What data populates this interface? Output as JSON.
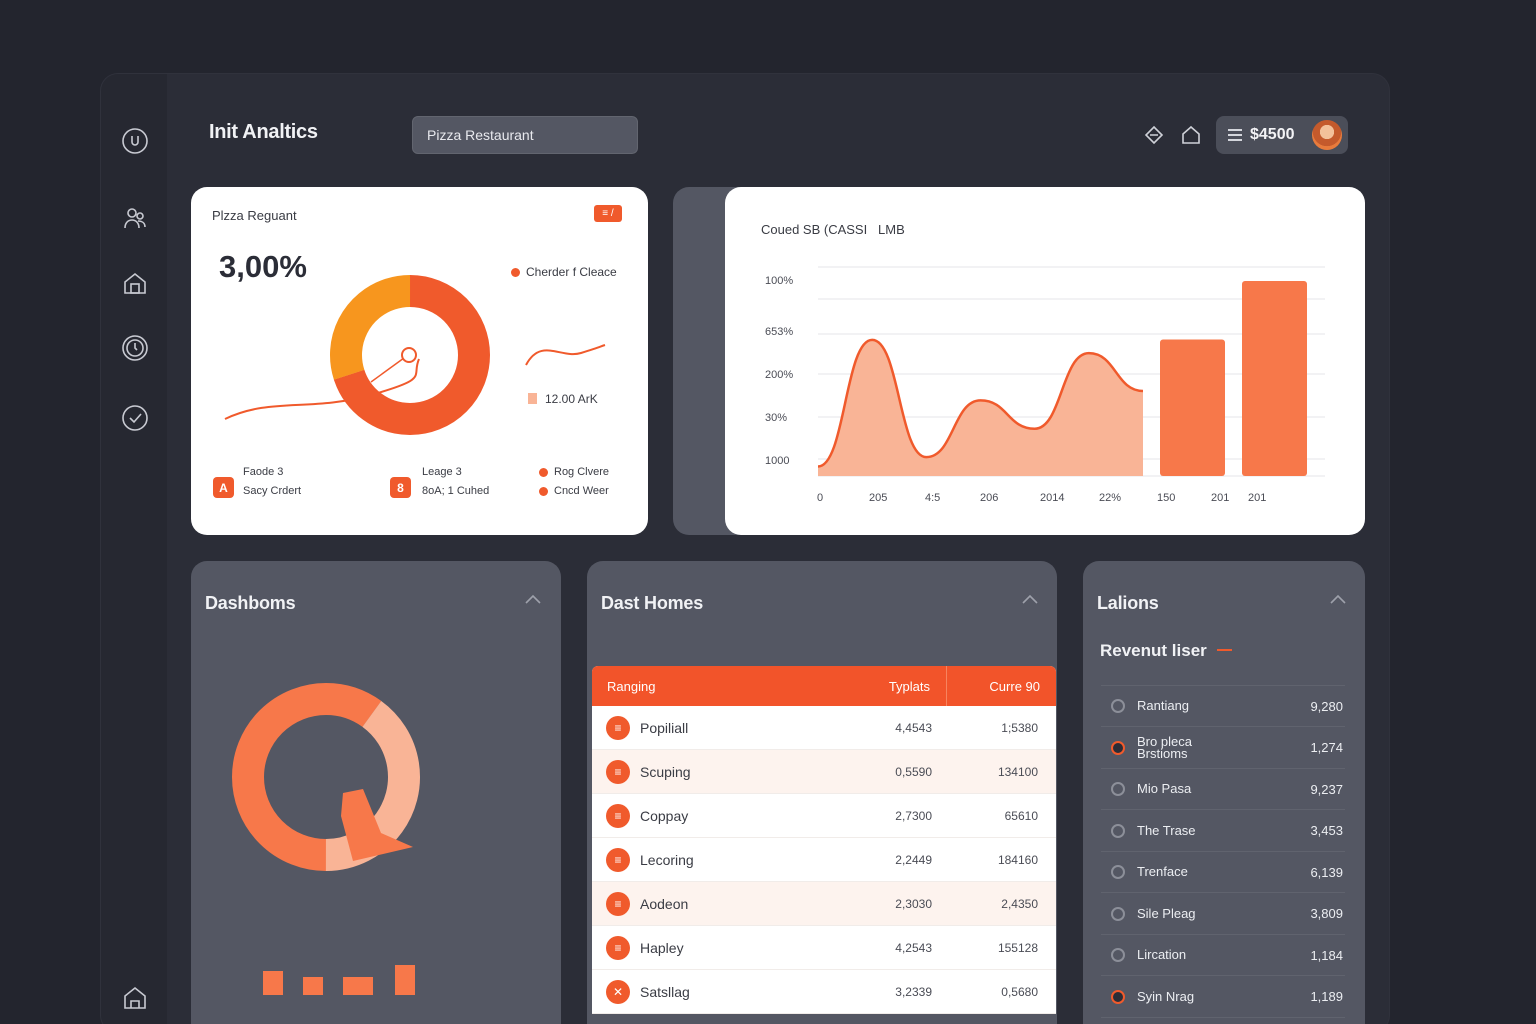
{
  "app": {
    "title": "Init Analtics"
  },
  "search": {
    "value": "Pizza Restaurant"
  },
  "header": {
    "balance": "$4500",
    "menu_icon": "menu-icon",
    "icons": [
      "diamond-nav-icon",
      "home-outline-icon"
    ]
  },
  "window": {
    "traffic_lights": [
      "#ff5f57",
      "#febc2e",
      "#28c840"
    ]
  },
  "sidebar": {
    "icons": [
      "power-icon",
      "people-icon",
      "store-icon",
      "clock-icon",
      "check-icon",
      "house-icon"
    ]
  },
  "donut_card": {
    "title": "Plzza Reguant",
    "badge": "≡ /",
    "big_value": "3,00%",
    "legend_top": "Cherder f Cleace",
    "side_value": "12.00 ArK",
    "footer": [
      {
        "badge": "A",
        "line1": "Faode 3",
        "line2": "Sacy Crdert"
      },
      {
        "badge": "8",
        "line1": "Leage 3",
        "line2": "8oA; 1 Cuhed"
      }
    ],
    "footer_legend": [
      "Rog Clvere",
      "Cncd Weer"
    ],
    "donut": {
      "segments": [
        {
          "value": 70,
          "color": "#f05a2c"
        },
        {
          "value": 30,
          "color": "#f7961e"
        }
      ]
    }
  },
  "chart_card": {
    "title": "Coued SB (CASSI   LMB",
    "chart_data": {
      "type": "area",
      "y_ticks": [
        "100%",
        "653%",
        "200%",
        "30%",
        "1000"
      ],
      "x_ticks": [
        "0",
        "205",
        "4:5",
        "206",
        "2014",
        "22%",
        "150",
        "201",
        "201"
      ],
      "area_values": [
        0.05,
        0.72,
        0.1,
        0.4,
        0.25,
        0.65,
        0.45
      ],
      "bars": [
        0.7,
        1.0
      ],
      "colors": {
        "area": "#f9b496",
        "line": "#f05a2c",
        "bar": "#f7784a"
      }
    }
  },
  "dashboms": {
    "title": "Dashboms",
    "ring": {
      "segments": [
        {
          "value": 60,
          "color": "#f7784a"
        },
        {
          "value": 40,
          "color": "#f9b496"
        }
      ]
    },
    "mini_bars": [
      0.6,
      0.45,
      0.45,
      0.75
    ]
  },
  "dast_homes": {
    "title": "Dast Homes",
    "columns": [
      "Ranging",
      "Typlats",
      "Curre 90"
    ],
    "rows": [
      {
        "icon": "≡",
        "name": "Popiliall",
        "c1": "4,4543",
        "c2": "1;5380",
        "alt": false
      },
      {
        "icon": "≡",
        "name": "Scuping",
        "c1": "0,5590",
        "c2": "134100",
        "alt": true
      },
      {
        "icon": "≡",
        "name": "Coppay",
        "c1": "2,7300",
        "c2": "65610",
        "alt": false
      },
      {
        "icon": "≡",
        "name": "Lecoring",
        "c1": "2,2449",
        "c2": "184160",
        "alt": false
      },
      {
        "icon": "≡",
        "name": "Aodeon",
        "c1": "2,3030",
        "c2": "2,4350",
        "alt": true
      },
      {
        "icon": "≡",
        "name": "Hapley",
        "c1": "4,2543",
        "c2": "155128",
        "alt": false
      },
      {
        "icon": "✕",
        "name": "Satsllag",
        "c1": "3,2339",
        "c2": "0,5680",
        "alt": false
      }
    ]
  },
  "lalions": {
    "title": "Lalions",
    "subtitle": "Revenut liser",
    "rows": [
      {
        "name": "Rantiang",
        "value": "9,280",
        "hot": false
      },
      {
        "name": "Bro pleca\nBrstioms",
        "value": "1,274",
        "hot": true
      },
      {
        "name": "Mio Pasa",
        "value": "9,237",
        "hot": false
      },
      {
        "name": "The Trase",
        "value": "3,453",
        "hot": false
      },
      {
        "name": "Trenface",
        "value": "6,139",
        "hot": false
      },
      {
        "name": "Sile Pleag",
        "value": "3,809",
        "hot": false
      },
      {
        "name": "Lircation",
        "value": "1,184",
        "hot": false
      },
      {
        "name": "Syin Nrag",
        "value": "1,189",
        "hot": true
      }
    ]
  }
}
